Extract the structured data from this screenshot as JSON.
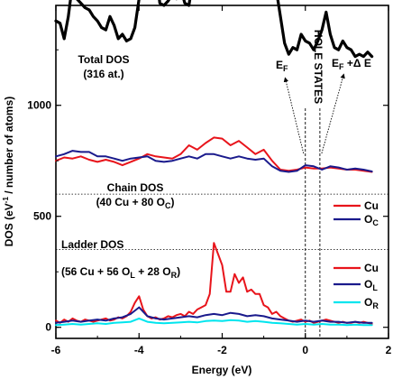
{
  "chart_data": {
    "type": "line",
    "xlabel": "Energy (eV)",
    "ylabel_main": "DOS (eV",
    "ylabel_sup": "-1",
    "ylabel_rest": " / number of atoms)",
    "xlim": [
      -6,
      2
    ],
    "ylim": [
      -50,
      1450
    ],
    "xticks": [
      -6,
      -4,
      -2,
      0,
      2
    ],
    "yticks": [
      0,
      500,
      1000
    ],
    "grid": false,
    "offsets": {
      "total": 600,
      "chain": 350,
      "ladder": 0
    },
    "panels": {
      "total": {
        "title": "Total DOS",
        "subtitle": "(316 at.)",
        "series": [
          {
            "name": "",
            "color": "#000000",
            "x": [
              -6.0,
              -5.9,
              -5.8,
              -5.7,
              -5.6,
              -5.5,
              -5.4,
              -5.3,
              -5.2,
              -5.1,
              -5.0,
              -4.9,
              -4.8,
              -4.7,
              -4.6,
              -4.5,
              -4.4,
              -4.3,
              -4.2,
              -4.1,
              -4.0,
              -3.9,
              -3.8,
              -3.7,
              -3.6,
              -3.5,
              -3.4,
              -3.3,
              -3.2,
              -3.1,
              -3.0,
              -2.9,
              -2.8,
              -2.7,
              -2.6,
              -2.5,
              -2.4,
              -2.3,
              -2.2,
              -2.1,
              -2.0,
              -1.9,
              -1.8,
              -1.7,
              -1.6,
              -1.5,
              -1.4,
              -1.3,
              -1.2,
              -1.1,
              -1.0,
              -0.9,
              -0.8,
              -0.7,
              -0.6,
              -0.5,
              -0.4,
              -0.3,
              -0.2,
              -0.1,
              0.0,
              0.1,
              0.2,
              0.3,
              0.4,
              0.5,
              0.6,
              0.7,
              0.8,
              0.9,
              1.0,
              1.1,
              1.2,
              1.3,
              1.4,
              1.5,
              1.6
            ],
            "values": [
              780,
              770,
              700,
              800,
              950,
              880,
              860,
              840,
              830,
              800,
              780,
              750,
              740,
              800,
              760,
              700,
              720,
              690,
              700,
              750,
              880,
              1020,
              1060,
              1140,
              1020,
              860,
              850,
              870,
              900,
              880,
              930,
              860,
              850,
              970,
              900,
              1000,
              920,
              1080,
              1200,
              1290,
              1230,
              1000,
              1000,
              990,
              1100,
              1080,
              1000,
              1050,
              950,
              990,
              1050,
              1000,
              940,
              920,
              800,
              680,
              630,
              660,
              650,
              720,
              690,
              680,
              650,
              690,
              740,
              820,
              720,
              660,
              650,
              690,
              660,
              650,
              620,
              630,
              620,
              640,
              620
            ]
          }
        ]
      },
      "chain": {
        "title": "Chain DOS",
        "subtitle": "(40 Cu + 80 O",
        "subtitle_sub": "C",
        "subtitle_end": ")",
        "series": [
          {
            "name": "Cu",
            "color": "#e8141b",
            "x": [
              -6.0,
              -5.8,
              -5.6,
              -5.4,
              -5.2,
              -5.0,
              -4.8,
              -4.6,
              -4.4,
              -4.2,
              -4.0,
              -3.8,
              -3.6,
              -3.4,
              -3.2,
              -3.0,
              -2.8,
              -2.6,
              -2.4,
              -2.2,
              -2.0,
              -1.8,
              -1.6,
              -1.4,
              -1.2,
              -1.0,
              -0.8,
              -0.6,
              -0.4,
              -0.2,
              0.0,
              0.2,
              0.4,
              0.6,
              0.8,
              1.0,
              1.2,
              1.4,
              1.6
            ],
            "values": [
              400,
              415,
              410,
              420,
              405,
              395,
              405,
              395,
              380,
              395,
              410,
              430,
              420,
              415,
              410,
              430,
              470,
              450,
              480,
              505,
              500,
              470,
              490,
              460,
              430,
              450,
              400,
              360,
              355,
              360,
              370,
              365,
              365,
              370,
              365,
              360,
              360,
              355,
              350
            ]
          },
          {
            "name": "O",
            "name_sub": "C",
            "color": "#1a1a8c",
            "x": [
              -6.0,
              -5.8,
              -5.6,
              -5.4,
              -5.2,
              -5.0,
              -4.8,
              -4.6,
              -4.4,
              -4.2,
              -4.0,
              -3.8,
              -3.6,
              -3.4,
              -3.2,
              -3.0,
              -2.8,
              -2.6,
              -2.4,
              -2.2,
              -2.0,
              -1.8,
              -1.6,
              -1.4,
              -1.2,
              -1.0,
              -0.8,
              -0.6,
              -0.4,
              -0.2,
              0.0,
              0.2,
              0.4,
              0.6,
              0.8,
              1.0,
              1.2,
              1.4,
              1.6
            ],
            "values": [
              420,
              430,
              445,
              440,
              440,
              420,
              420,
              410,
              400,
              410,
              415,
              420,
              400,
              395,
              400,
              410,
              420,
              410,
              430,
              430,
              420,
              410,
              420,
              410,
              405,
              410,
              375,
              355,
              350,
              355,
              380,
              375,
              360,
              375,
              370,
              360,
              365,
              360,
              352
            ]
          }
        ]
      },
      "ladder": {
        "title": "Ladder DOS",
        "subtitle": "(56 Cu + 56 O",
        "subtitle_sub1": "L",
        "subtitle_mid": " + 28 O",
        "subtitle_sub2": "R",
        "subtitle_end": ")",
        "series": [
          {
            "name": "Cu",
            "color": "#e8141b",
            "x": [
              -6.0,
              -5.9,
              -5.8,
              -5.7,
              -5.6,
              -5.5,
              -5.4,
              -5.3,
              -5.2,
              -5.1,
              -5.0,
              -4.9,
              -4.8,
              -4.7,
              -4.6,
              -4.5,
              -4.4,
              -4.3,
              -4.2,
              -4.1,
              -4.0,
              -3.9,
              -3.8,
              -3.7,
              -3.6,
              -3.5,
              -3.4,
              -3.3,
              -3.2,
              -3.1,
              -3.0,
              -2.9,
              -2.8,
              -2.7,
              -2.6,
              -2.5,
              -2.4,
              -2.3,
              -2.2,
              -2.1,
              -2.0,
              -1.9,
              -1.8,
              -1.7,
              -1.6,
              -1.5,
              -1.4,
              -1.3,
              -1.2,
              -1.1,
              -1.0,
              -0.9,
              -0.8,
              -0.7,
              -0.6,
              -0.5,
              -0.4,
              -0.3,
              -0.2,
              -0.1,
              0.0,
              0.1,
              0.2,
              0.3,
              0.4,
              0.5,
              0.6,
              0.7,
              0.8,
              0.9,
              1.0,
              1.1,
              1.2,
              1.3,
              1.4,
              1.5,
              1.6
            ],
            "values": [
              30,
              20,
              35,
              25,
              40,
              30,
              25,
              35,
              30,
              25,
              30,
              35,
              40,
              30,
              35,
              45,
              40,
              50,
              70,
              110,
              140,
              80,
              50,
              40,
              45,
              35,
              40,
              50,
              45,
              55,
              60,
              50,
              70,
              60,
              80,
              90,
              100,
              150,
              380,
              330,
              280,
              160,
              160,
              240,
              200,
              225,
              160,
              170,
              150,
              150,
              100,
              90,
              60,
              70,
              50,
              40,
              30,
              25,
              30,
              35,
              25,
              30,
              20,
              25,
              30,
              35,
              30,
              25,
              20,
              25,
              20,
              20,
              25,
              20,
              25,
              20,
              15
            ]
          },
          {
            "name": "O",
            "name_sub": "L",
            "color": "#1a1a8c",
            "x": [
              -6.0,
              -5.8,
              -5.6,
              -5.4,
              -5.2,
              -5.0,
              -4.8,
              -4.6,
              -4.4,
              -4.2,
              -4.0,
              -3.8,
              -3.6,
              -3.4,
              -3.2,
              -3.0,
              -2.8,
              -2.6,
              -2.4,
              -2.2,
              -2.0,
              -1.8,
              -1.6,
              -1.4,
              -1.2,
              -1.0,
              -0.8,
              -0.6,
              -0.4,
              -0.2,
              0.0,
              0.2,
              0.4,
              0.6,
              0.8,
              1.0,
              1.2,
              1.4,
              1.6
            ],
            "values": [
              20,
              25,
              30,
              25,
              30,
              35,
              30,
              40,
              45,
              60,
              90,
              50,
              40,
              35,
              40,
              45,
              50,
              45,
              55,
              60,
              55,
              65,
              60,
              50,
              55,
              50,
              40,
              35,
              30,
              25,
              30,
              25,
              30,
              25,
              25,
              20,
              25,
              20,
              20
            ]
          },
          {
            "name": "O",
            "name_sub": "R",
            "color": "#00e5ee",
            "x": [
              -6.0,
              -5.8,
              -5.6,
              -5.4,
              -5.2,
              -5.0,
              -4.8,
              -4.6,
              -4.4,
              -4.2,
              -4.0,
              -3.8,
              -3.6,
              -3.4,
              -3.2,
              -3.0,
              -2.8,
              -2.6,
              -2.4,
              -2.2,
              -2.0,
              -1.8,
              -1.6,
              -1.4,
              -1.2,
              -1.0,
              -0.8,
              -0.6,
              -0.4,
              -0.2,
              0.0,
              0.2,
              0.4,
              0.6,
              0.8,
              1.0,
              1.2,
              1.4,
              1.6
            ],
            "values": [
              10,
              12,
              15,
              12,
              15,
              18,
              15,
              20,
              22,
              25,
              40,
              25,
              20,
              18,
              20,
              22,
              25,
              22,
              28,
              30,
              28,
              32,
              30,
              25,
              28,
              25,
              20,
              18,
              15,
              12,
              15,
              12,
              15,
              12,
              12,
              10,
              12,
              10,
              10
            ]
          }
        ]
      }
    },
    "annotations": {
      "hole_states": "HOLE STATES",
      "ef": "E",
      "ef_sub": "F",
      "ef_de": "E",
      "ef_de_sub": "F",
      "ef_de_tail": " +Δ E",
      "ef_x": 0.0,
      "ef_de_x": 0.35
    }
  }
}
